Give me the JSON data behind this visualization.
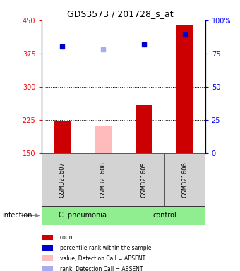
{
  "title": "GDS3573 / 201728_s_at",
  "samples": [
    "GSM321607",
    "GSM321608",
    "GSM321605",
    "GSM321606"
  ],
  "bar_values": [
    222,
    210,
    258,
    440
  ],
  "bar_colors": [
    "#cc0000",
    "#ffbbbb",
    "#cc0000",
    "#cc0000"
  ],
  "dot_values": [
    390,
    385,
    395,
    418
  ],
  "dot_colors": [
    "#0000cc",
    "#aaaaee",
    "#0000cc",
    "#0000cc"
  ],
  "dot2_values": [
    null,
    null,
    null,
    410
  ],
  "ylim_left": [
    150,
    450
  ],
  "ylim_right": [
    0,
    100
  ],
  "yticks_left": [
    150,
    225,
    300,
    375,
    450
  ],
  "yticks_right": [
    0,
    25,
    50,
    75,
    100
  ],
  "ytick_labels_right": [
    "0",
    "25",
    "50",
    "75",
    "100%"
  ],
  "hlines": [
    225,
    300,
    375
  ],
  "bar_bottom": 150,
  "legend_items": [
    {
      "label": "count",
      "color": "#cc0000"
    },
    {
      "label": "percentile rank within the sample",
      "color": "#0000cc"
    },
    {
      "label": "value, Detection Call = ABSENT",
      "color": "#ffbbbb"
    },
    {
      "label": "rank, Detection Call = ABSENT",
      "color": "#aaaaee"
    }
  ],
  "bar_width": 0.4,
  "fig_width": 3.4,
  "fig_height": 3.84,
  "dpi": 100
}
